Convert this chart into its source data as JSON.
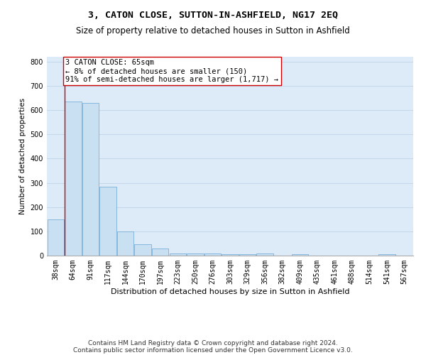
{
  "title": "3, CATON CLOSE, SUTTON-IN-ASHFIELD, NG17 2EQ",
  "subtitle": "Size of property relative to detached houses in Sutton in Ashfield",
  "xlabel": "Distribution of detached houses by size in Sutton in Ashfield",
  "ylabel": "Number of detached properties",
  "footnote1": "Contains HM Land Registry data © Crown copyright and database right 2024.",
  "footnote2": "Contains public sector information licensed under the Open Government Licence v3.0.",
  "categories": [
    "38sqm",
    "64sqm",
    "91sqm",
    "117sqm",
    "144sqm",
    "170sqm",
    "197sqm",
    "223sqm",
    "250sqm",
    "276sqm",
    "303sqm",
    "329sqm",
    "356sqm",
    "382sqm",
    "409sqm",
    "435sqm",
    "461sqm",
    "488sqm",
    "514sqm",
    "541sqm",
    "567sqm"
  ],
  "values": [
    150,
    635,
    630,
    285,
    100,
    47,
    30,
    10,
    10,
    8,
    5,
    5,
    8,
    0,
    5,
    0,
    0,
    0,
    0,
    5,
    0
  ],
  "bar_color": "#c9dff2",
  "bar_edge_color": "#7ab0d8",
  "vline_x_idx": 0.525,
  "annotation_text": "3 CATON CLOSE: 65sqm\n← 8% of detached houses are smaller (150)\n91% of semi-detached houses are larger (1,717) →",
  "annotation_box_facecolor": "#ffffff",
  "annotation_box_edgecolor": "#cc0000",
  "vline_color": "#cc0000",
  "ylim": [
    0,
    820
  ],
  "yticks": [
    0,
    100,
    200,
    300,
    400,
    500,
    600,
    700,
    800
  ],
  "grid_color": "#c0d4e8",
  "background_color": "#ddeaf8",
  "title_fontsize": 9.5,
  "subtitle_fontsize": 8.5,
  "xlabel_fontsize": 8,
  "ylabel_fontsize": 7.5,
  "tick_fontsize": 7,
  "annotation_fontsize": 7.5,
  "footnote_fontsize": 6.5
}
